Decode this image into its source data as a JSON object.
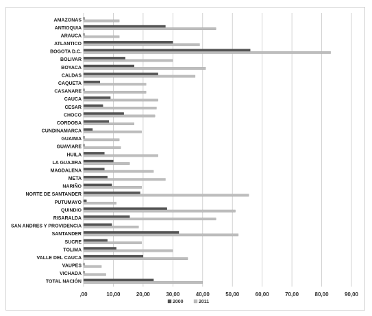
{
  "chart_data": {
    "type": "bar",
    "orientation": "horizontal",
    "categories": [
      "AMAZONAS",
      "ANTIOQUIA",
      "ARAUCA",
      "ATLANTICO",
      "BOGOTA D.C.",
      "BOLIVAR",
      "BOYACA",
      "CALDAS",
      "CAQUETA",
      "CASANARE",
      "CAUCA",
      "CESAR",
      "CHOCO",
      "CORDOBA",
      "CUNDINAMARCA",
      "GUAINIA",
      "GUAVIARE",
      "HUILA",
      "LA GUAJIRA",
      "MAGDALENA",
      "META",
      "NARIÑO",
      "NORTE DE SANTANDER",
      "PUTUMAYO",
      "QUINDIO",
      "RISARALDA",
      "SAN ANDRES Y PROVIDENCIA",
      "SANTANDER",
      "SUCRE",
      "TOLIMA",
      "VALLE DEL CAUCA",
      "VAUPES",
      "VICHADA",
      "TOTAL NACIÓN"
    ],
    "series": [
      {
        "name": "2000",
        "color": "#555555",
        "values": [
          0.3,
          27.5,
          0.3,
          30.0,
          56.0,
          14.0,
          17.0,
          25.0,
          5.5,
          0.3,
          9.0,
          6.5,
          13.5,
          8.5,
          3.0,
          0.3,
          0.3,
          7.0,
          10.0,
          7.0,
          8.0,
          9.5,
          19.0,
          1.0,
          28.0,
          15.5,
          9.5,
          32.0,
          8.0,
          11.0,
          20.0,
          0.3,
          0.3,
          23.5
        ]
      },
      {
        "name": "2011",
        "color": "#bdbdbd",
        "values": [
          12.0,
          44.5,
          12.0,
          39.0,
          83.0,
          30.0,
          41.0,
          37.5,
          21.0,
          21.0,
          25.0,
          24.5,
          24.0,
          17.0,
          19.5,
          12.0,
          12.5,
          25.0,
          15.5,
          23.5,
          27.5,
          19.5,
          55.5,
          11.0,
          51.0,
          44.5,
          18.5,
          52.0,
          19.5,
          30.0,
          35.0,
          6.0,
          7.5,
          40.0
        ]
      }
    ],
    "x_ticks": [
      ",00",
      "10,00",
      "20,00",
      "30,00",
      "40,00",
      "50,00",
      "60,00",
      "70,00",
      "80,00",
      "90,00"
    ],
    "xlim": [
      0,
      90
    ],
    "grid": "vertical",
    "legend": "bottom-center"
  }
}
